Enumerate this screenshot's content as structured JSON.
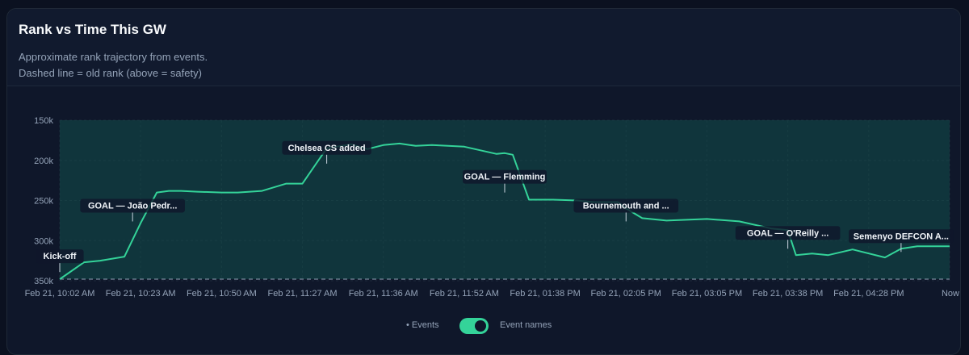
{
  "header": {
    "title": "Rank vs Time This GW",
    "subtitle1": "Approximate rank trajectory from events.",
    "subtitle2": "Dashed line = old rank (above = safety)"
  },
  "legend": {
    "events_label": "• Events",
    "names_label": "Event names",
    "names_toggle_on": true
  },
  "colors": {
    "line": "#34d399",
    "safety_fill": "#134e4a",
    "old_rank_line": "#94a3b8"
  },
  "chart_data": {
    "type": "line",
    "title": "Rank vs Time This GW",
    "ylim": [
      150000,
      350000
    ],
    "y_inverted": true,
    "y_ticks": [
      150000,
      200000,
      250000,
      300000,
      350000
    ],
    "y_tick_labels": [
      "150k",
      "200k",
      "250k",
      "300k",
      "350k"
    ],
    "x_tick_labels": [
      "Feb 21, 10:02 AM",
      "Feb 21, 10:23 AM",
      "Feb 21, 10:50 AM",
      "Feb 21, 11:27 AM",
      "Feb 21, 11:36 AM",
      "Feb 21, 11:52 AM",
      "Feb 21, 01:38 PM",
      "Feb 21, 02:05 PM",
      "Feb 21, 03:05 PM",
      "Feb 21, 03:38 PM",
      "Feb 21, 04:28 PM",
      "Now"
    ],
    "old_rank": 348000,
    "grid": true,
    "series": [
      {
        "x": [
          0,
          0.3,
          0.5,
          0.8,
          1.0,
          1.2,
          1.35,
          1.5,
          1.7,
          2.0,
          2.2,
          2.5,
          2.8,
          3.0,
          3.3,
          3.6,
          3.8,
          4.0,
          4.2,
          4.4,
          4.6,
          5.0,
          5.4,
          5.5,
          5.6,
          5.8,
          6.1,
          6.4,
          6.6,
          6.9,
          7.0,
          7.2,
          7.5,
          8.0,
          8.4,
          8.8,
          9.0,
          9.1,
          9.3,
          9.5,
          9.8,
          10.2,
          10.4,
          10.6,
          11.0
        ],
        "y": [
          348000,
          327000,
          325000,
          320000,
          278000,
          240000,
          238000,
          238000,
          239000,
          240000,
          240000,
          238000,
          229000,
          229000,
          185000,
          180000,
          186000,
          181000,
          179000,
          182000,
          181000,
          183000,
          192000,
          191000,
          193000,
          249000,
          249000,
          250000,
          252000,
          252000,
          260000,
          272000,
          275000,
          273000,
          276000,
          285000,
          287000,
          318000,
          316000,
          318000,
          311000,
          321000,
          310000,
          307000,
          307000
        ]
      }
    ],
    "events": [
      {
        "label": "Kick-off",
        "x": 0,
        "y": 325000
      },
      {
        "label": "GOAL — João Pedr...",
        "x": 0.9,
        "y": 262000
      },
      {
        "label": "Chelsea CS added",
        "x": 3.3,
        "y": 190000
      },
      {
        "label": "GOAL — Flemming",
        "x": 5.5,
        "y": 226000
      },
      {
        "label": "Bournemouth and ...",
        "x": 7.0,
        "y": 262000
      },
      {
        "label": "GOAL — O'Reilly ...",
        "x": 9.0,
        "y": 296000
      },
      {
        "label": "Semenyo DEFCON A...",
        "x": 10.4,
        "y": 300000
      }
    ]
  }
}
